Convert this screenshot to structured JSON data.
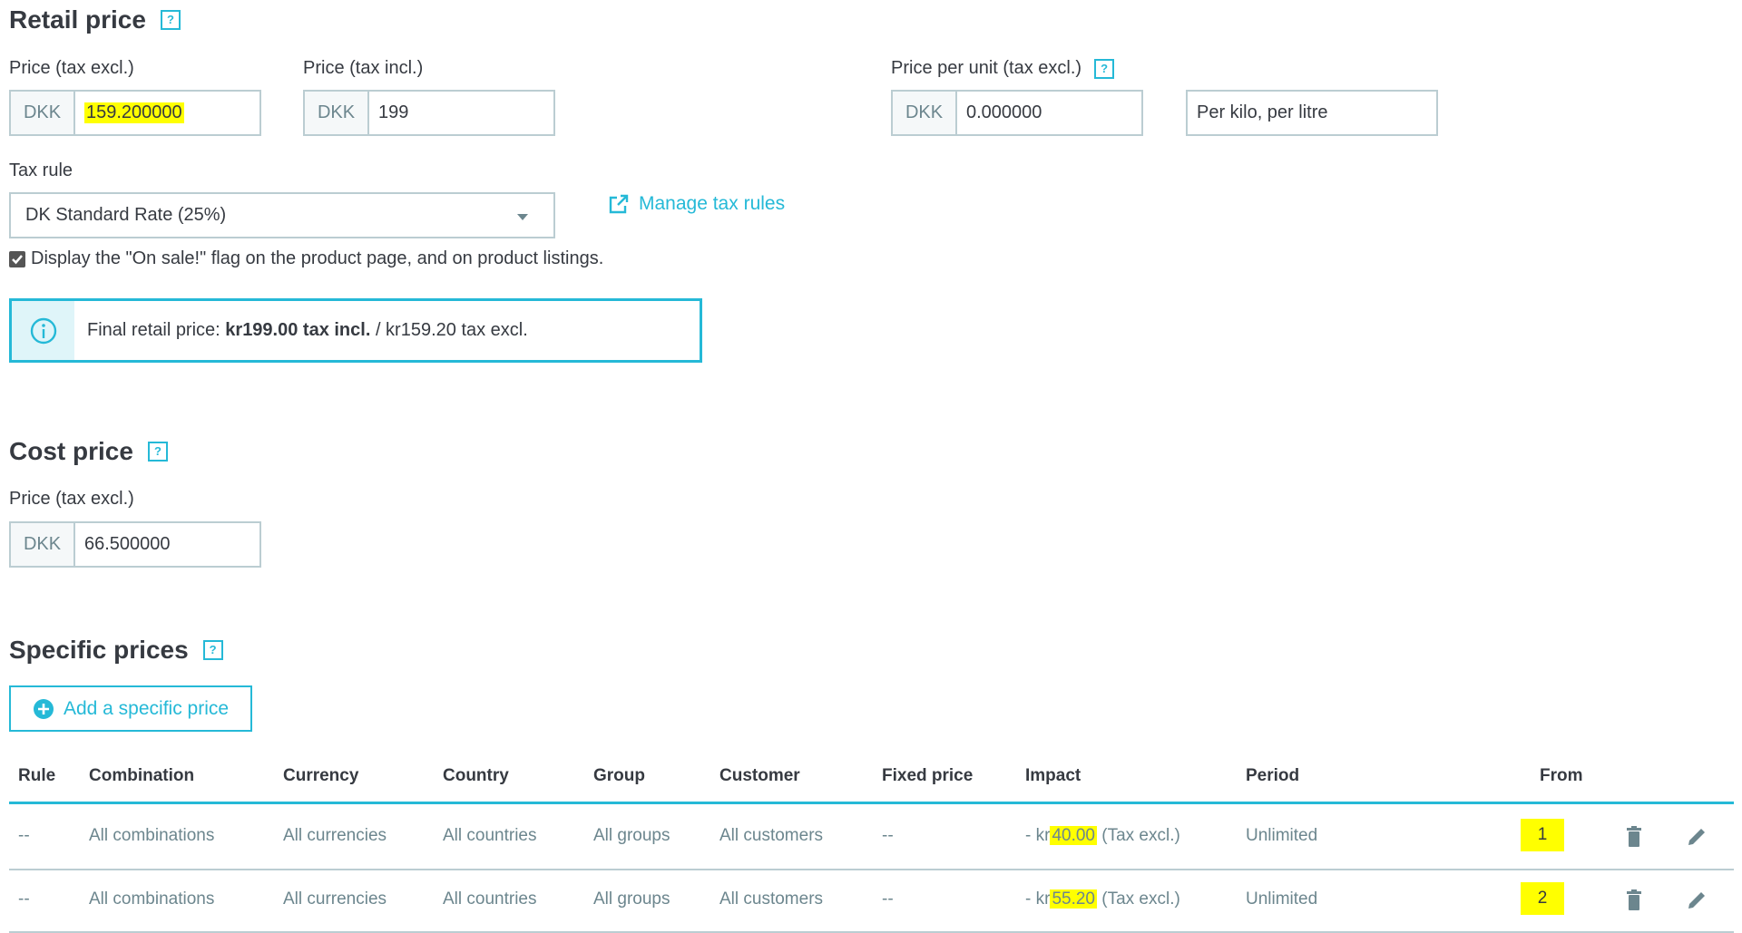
{
  "retail": {
    "title": "Retail price",
    "price_excl_label": "Price (tax excl.)",
    "price_incl_label": "Price (tax incl.)",
    "unit_label": "Price per unit (tax excl.)",
    "currency": "DKK",
    "price_excl": "159.200000",
    "price_incl": "199",
    "unit_price": "0.000000",
    "unit_placeholder": "Per kilo, per litre",
    "tax_rule_label": "Tax rule",
    "tax_rule": "DK Standard Rate (25%)",
    "manage_tax_rules": "Manage tax rules",
    "on_sale_label": "Display the \"On sale!\" flag on the product page, and on product listings.",
    "on_sale_checked": true,
    "final_prefix": "Final retail price: ",
    "final_incl": "kr199.00 tax incl.",
    "final_excl": " / kr159.20 tax excl."
  },
  "cost": {
    "title": "Cost price",
    "label": "Price (tax excl.)",
    "currency": "DKK",
    "value": "66.500000"
  },
  "specific": {
    "title": "Specific prices",
    "add_button": "Add a specific price",
    "headers": [
      "Rule",
      "Combination",
      "Currency",
      "Country",
      "Group",
      "Customer",
      "Fixed price",
      "Impact",
      "Period",
      "From"
    ],
    "rows": [
      {
        "rule": "--",
        "combination": "All combinations",
        "currency": "All currencies",
        "country": "All countries",
        "group": "All groups",
        "customer": "All customers",
        "fixed": "--",
        "impact_prefix": "- kr",
        "impact_value": "40.00",
        "impact_suffix": " (Tax excl.)",
        "period": "Unlimited",
        "from": "1"
      },
      {
        "rule": "--",
        "combination": "All combinations",
        "currency": "All currencies",
        "country": "All countries",
        "group": "All groups",
        "customer": "All customers",
        "fixed": "--",
        "impact_prefix": "- kr",
        "impact_value": "55.20",
        "impact_suffix": " (Tax excl.)",
        "period": "Unlimited",
        "from": "2"
      }
    ]
  },
  "colors": {
    "accent": "#25b9d7",
    "highlight": "#ffff00",
    "text": "#363a41"
  }
}
